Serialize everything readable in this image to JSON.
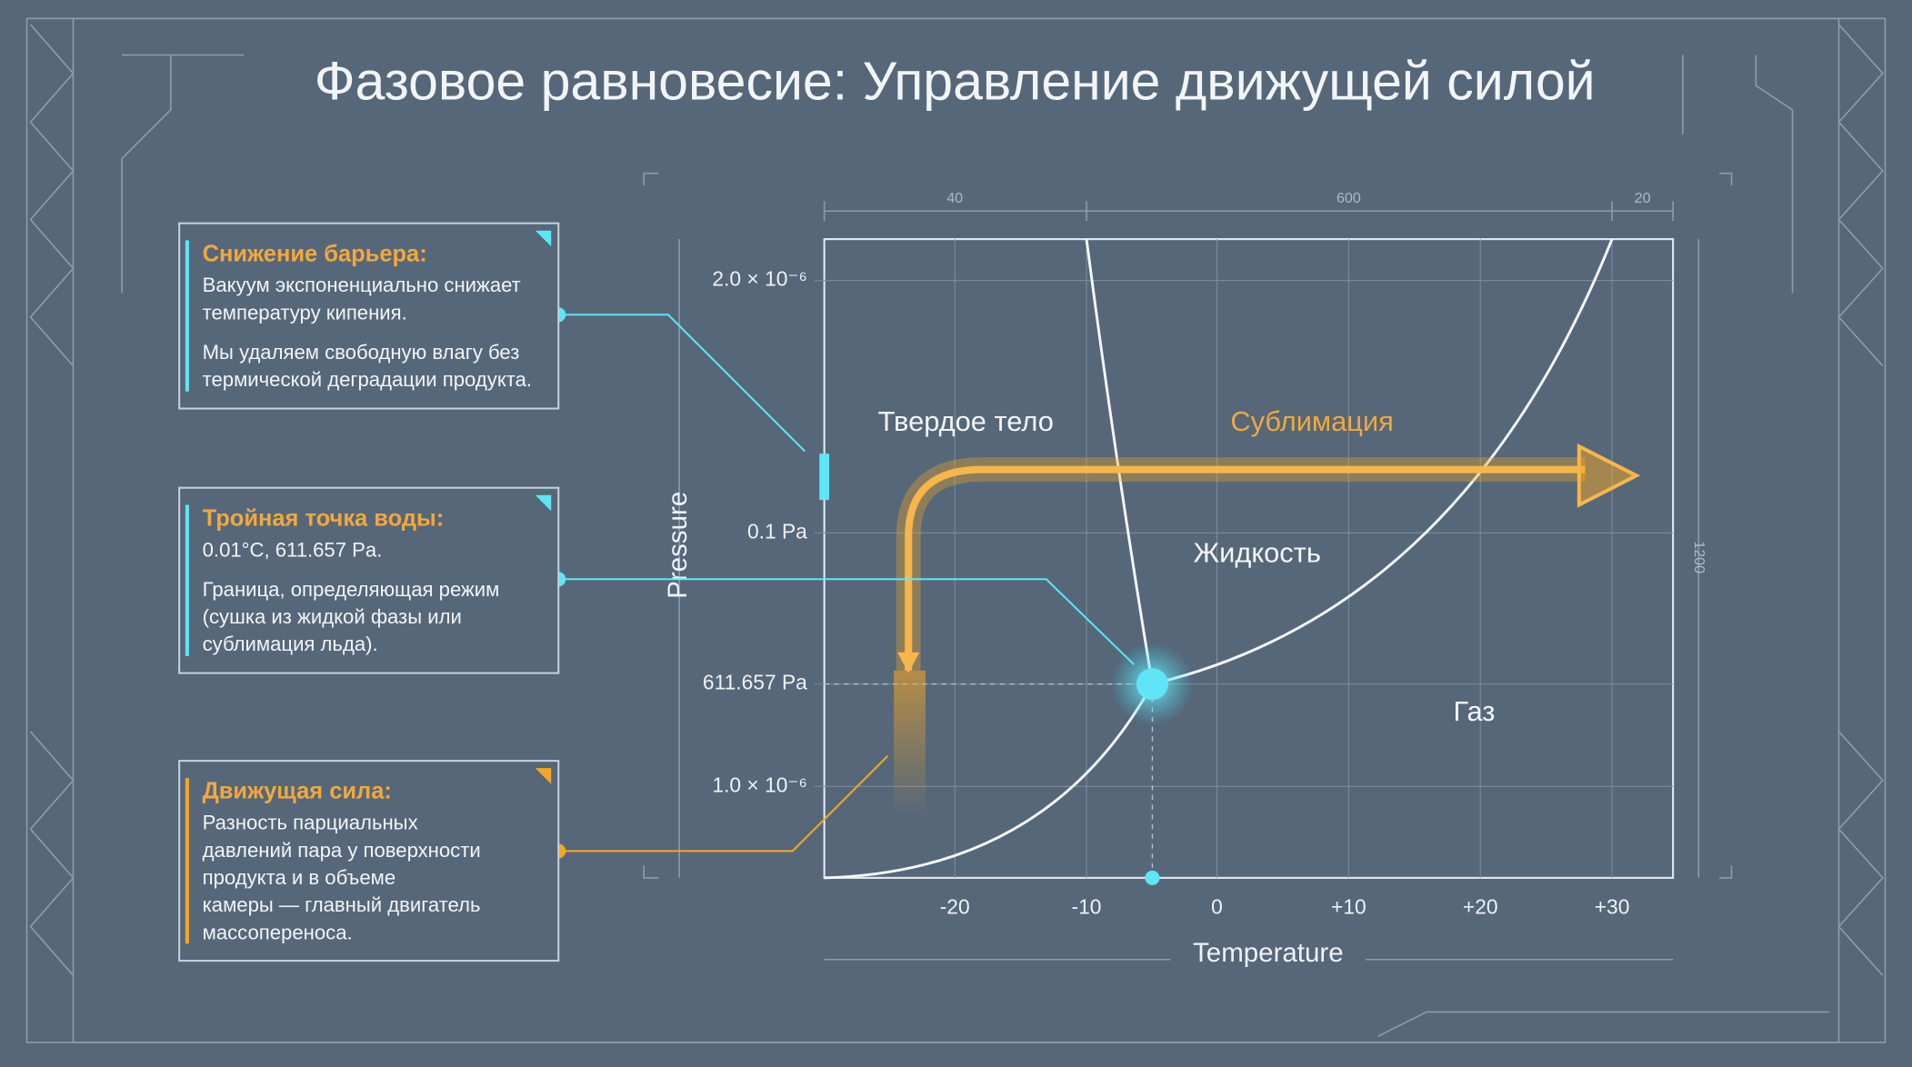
{
  "title": "Фазовое равновесие: Управление движущей силой",
  "panels": [
    {
      "heading": "Снижение барьера:",
      "paragraphs": [
        [
          "Вакуум экспоненциально снижает",
          "температуру кипения."
        ],
        [
          "Мы удаляем свободную влагу без",
          "термической деградации продукта."
        ]
      ]
    },
    {
      "heading": "Тройная точка воды:",
      "paragraphs": [
        [
          "0.01°C, 611.657 Pa."
        ],
        [
          "Граница, определяющая режим",
          "(сушка из жидкой фазы или",
          "сублимация льда)."
        ]
      ]
    },
    {
      "heading": "Движущая сила:",
      "paragraphs": [
        [
          "Разность парциальных",
          "давлений пара у поверхности",
          "продукта и в объеме",
          "камеры — главный двигатель",
          "массопереноса."
        ]
      ]
    }
  ],
  "diagram": {
    "y_label": "Pressure",
    "x_label": "Temperature",
    "y_ticks": [
      "2.0 × 10⁻⁶",
      "0.1 Pa",
      "611.657 Pa",
      "1.0 × 10⁻⁶"
    ],
    "x_ticks": [
      "-20",
      "-10",
      "0",
      "+10",
      "+20",
      "+30"
    ],
    "top_dims": [
      "40",
      "600",
      "20"
    ],
    "side_dim": "1200",
    "regions": [
      "Твердое тело",
      "Сублимация",
      "Жидкость",
      "Газ"
    ]
  }
}
